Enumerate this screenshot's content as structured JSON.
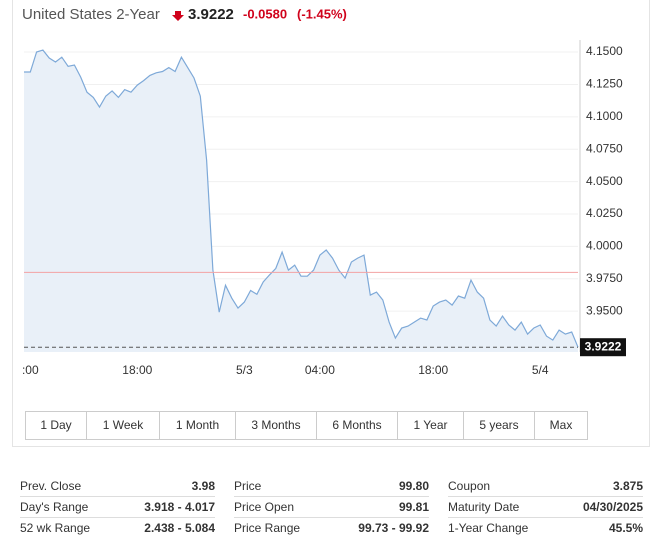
{
  "quote": {
    "name": "United States 2-Year",
    "change": "-0.0580",
    "change_pct": "(-1.45%)"
  },
  "chart_data": {
    "type": "line",
    "color": "#7ea9d8",
    "fill": "#e9f0f8",
    "categories": [
      null,
      ":00",
      null,
      null,
      null,
      null,
      null,
      null,
      null,
      null,
      null,
      null,
      null,
      null,
      null,
      null,
      null,
      null,
      "18:00",
      null,
      null,
      null,
      null,
      null,
      null,
      null,
      null,
      null,
      null,
      null,
      null,
      null,
      null,
      null,
      null,
      "5/3",
      null,
      null,
      null,
      null,
      null,
      null,
      null,
      null,
      null,
      null,
      null,
      "04:00",
      null,
      null,
      null,
      null,
      null,
      null,
      null,
      null,
      null,
      null,
      null,
      null,
      null,
      null,
      null,
      null,
      null,
      "18:00",
      null,
      null,
      null,
      null,
      null,
      null,
      null,
      null,
      null,
      null,
      null,
      null,
      null,
      null,
      null,
      null,
      "5/4",
      null,
      null,
      null,
      null,
      null,
      null
    ],
    "values": [
      4.1346,
      4.1346,
      4.15,
      4.1515,
      4.1454,
      4.1423,
      4.146,
      4.139,
      4.14,
      4.1307,
      4.119,
      4.115,
      4.1075,
      4.116,
      4.12,
      4.115,
      4.121,
      4.119,
      4.1245,
      4.128,
      4.132,
      4.134,
      4.135,
      4.138,
      4.135,
      4.146,
      4.138,
      4.13,
      4.116,
      4.0666,
      3.9817,
      3.9493,
      3.97,
      3.96,
      3.9524,
      3.957,
      3.966,
      3.963,
      3.9725,
      3.978,
      3.983,
      3.9956,
      3.9817,
      3.9856,
      3.977,
      3.977,
      3.9817,
      3.9933,
      3.9972,
      3.991,
      3.9817,
      3.9755,
      3.988,
      3.991,
      3.9933,
      3.9624,
      3.9647,
      3.9586,
      3.9416,
      3.9292,
      3.937,
      3.9385,
      3.9416,
      3.9447,
      3.9432,
      3.954,
      3.957,
      3.9586,
      3.9547,
      3.9617,
      3.96,
      3.974,
      3.9647,
      3.96,
      3.9432,
      3.9385,
      3.9462,
      3.9393,
      3.9354,
      3.9416,
      3.9323,
      3.937,
      3.9393,
      3.9308,
      3.9277,
      3.9354,
      3.9323,
      3.9339,
      3.9222
    ],
    "ylim": [
      3.9185,
      4.1593
    ],
    "yticks": [
      {
        "value": 3.95,
        "label": "3.9500"
      },
      {
        "value": 3.975,
        "label": "3.9750"
      },
      {
        "value": 4.0,
        "label": "4.0000"
      },
      {
        "value": 4.025,
        "label": "4.0250"
      },
      {
        "value": 4.05,
        "label": "4.0500"
      },
      {
        "value": 4.075,
        "label": "4.0750"
      },
      {
        "value": 4.1,
        "label": "4.1000"
      },
      {
        "value": 4.125,
        "label": "4.1250"
      },
      {
        "value": 4.15,
        "label": "4.1500"
      }
    ],
    "grid": true,
    "reference_lines": [
      {
        "value": 3.98,
        "color": "#f3a3a3"
      }
    ]
  },
  "ranges": [
    "1 Day",
    "1 Week",
    "1 Month",
    "3 Months",
    "6 Months",
    "1 Year",
    "5 years",
    "Max"
  ],
  "stats": [
    [
      [
        "Prev. Close",
        "3.98"
      ],
      [
        "Day's Range",
        "3.918 - 4.017"
      ],
      [
        "52 wk Range",
        "2.438 - 5.084"
      ]
    ],
    [
      [
        "Price",
        "99.80"
      ],
      [
        "Price Open",
        "99.81"
      ],
      [
        "Price Range",
        "99.73 - 99.92"
      ]
    ],
    [
      [
        "Coupon",
        "3.875"
      ],
      [
        "Maturity Date",
        "04/30/2025"
      ],
      [
        "1-Year Change",
        "45.5%"
      ]
    ]
  ]
}
